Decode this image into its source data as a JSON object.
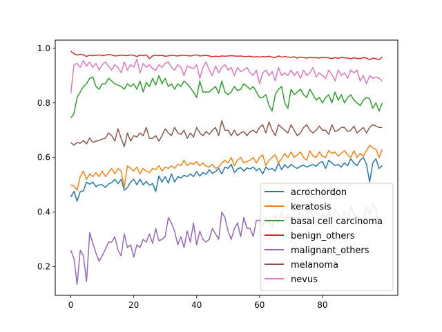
{
  "chart_data": {
    "type": "line",
    "title": "",
    "xlabel": "",
    "ylabel": "",
    "xlim": [
      -4.95,
      103.95
    ],
    "ylim": [
      0.095,
      1.03
    ],
    "x_ticks": [
      0,
      20,
      40,
      60,
      80
    ],
    "y_ticks": [
      0.2,
      0.4,
      0.6,
      0.8,
      1.0
    ],
    "x_tick_labels": [
      "0",
      "20",
      "40",
      "60",
      "80"
    ],
    "y_tick_labels": [
      "0.2",
      "0.4",
      "0.6",
      "0.8",
      "1.0"
    ],
    "grid": false,
    "legend_position": "lower-right",
    "x": [
      0,
      1,
      2,
      3,
      4,
      5,
      6,
      7,
      8,
      9,
      10,
      11,
      12,
      13,
      14,
      15,
      16,
      17,
      18,
      19,
      20,
      21,
      22,
      23,
      24,
      25,
      26,
      27,
      28,
      29,
      30,
      31,
      32,
      33,
      34,
      35,
      36,
      37,
      38,
      39,
      40,
      41,
      42,
      43,
      44,
      45,
      46,
      47,
      48,
      49,
      50,
      51,
      52,
      53,
      54,
      55,
      56,
      57,
      58,
      59,
      60,
      61,
      62,
      63,
      64,
      65,
      66,
      67,
      68,
      69,
      70,
      71,
      72,
      73,
      74,
      75,
      76,
      77,
      78,
      79,
      80,
      81,
      82,
      83,
      84,
      85,
      86,
      87,
      88,
      89,
      90,
      91,
      92,
      93,
      94,
      95,
      96,
      97,
      98,
      99
    ],
    "series": [
      {
        "name": "acrochordon",
        "color": "#1f77b4",
        "values": [
          0.455,
          0.476,
          0.44,
          0.475,
          0.478,
          0.51,
          0.502,
          0.51,
          0.493,
          0.5,
          0.5,
          0.49,
          0.503,
          0.508,
          0.52,
          0.504,
          0.52,
          0.48,
          0.49,
          0.51,
          0.52,
          0.5,
          0.52,
          0.5,
          0.512,
          0.498,
          0.505,
          0.475,
          0.532,
          0.51,
          0.53,
          0.506,
          0.54,
          0.51,
          0.53,
          0.525,
          0.535,
          0.53,
          0.54,
          0.53,
          0.548,
          0.532,
          0.545,
          0.538,
          0.555,
          0.542,
          0.548,
          0.56,
          0.54,
          0.565,
          0.56,
          0.575,
          0.545,
          0.558,
          0.563,
          0.55,
          0.562,
          0.558,
          0.565,
          0.552,
          0.56,
          0.54,
          0.565,
          0.555,
          0.56,
          0.55,
          0.58,
          0.555,
          0.574,
          0.562,
          0.575,
          0.566,
          0.56,
          0.568,
          0.572,
          0.565,
          0.57,
          0.575,
          0.568,
          0.58,
          0.585,
          0.56,
          0.59,
          0.58,
          0.57,
          0.575,
          0.565,
          0.58,
          0.57,
          0.595,
          0.58,
          0.57,
          0.59,
          0.6,
          0.575,
          0.51,
          0.58,
          0.595,
          0.56,
          0.57
        ]
      },
      {
        "name": "keratosis",
        "color": "#ff7f0e",
        "values": [
          0.5,
          0.495,
          0.48,
          0.53,
          0.55,
          0.52,
          0.54,
          0.53,
          0.545,
          0.53,
          0.55,
          0.53,
          0.545,
          0.56,
          0.54,
          0.56,
          0.55,
          0.49,
          0.57,
          0.56,
          0.55,
          0.565,
          0.54,
          0.56,
          0.55,
          0.545,
          0.56,
          0.555,
          0.57,
          0.55,
          0.565,
          0.56,
          0.57,
          0.56,
          0.575,
          0.57,
          0.59,
          0.57,
          0.58,
          0.575,
          0.585,
          0.57,
          0.58,
          0.568,
          0.565,
          0.575,
          0.56,
          0.565,
          0.58,
          0.59,
          0.58,
          0.6,
          0.57,
          0.59,
          0.6,
          0.58,
          0.585,
          0.59,
          0.6,
          0.58,
          0.6,
          0.61,
          0.57,
          0.59,
          0.6,
          0.61,
          0.58,
          0.595,
          0.615,
          0.6,
          0.62,
          0.6,
          0.61,
          0.62,
          0.6,
          0.59,
          0.625,
          0.605,
          0.6,
          0.62,
          0.605,
          0.6,
          0.625,
          0.615,
          0.62,
          0.605,
          0.615,
          0.625,
          0.61,
          0.6,
          0.625,
          0.6,
          0.615,
          0.605,
          0.625,
          0.645,
          0.635,
          0.63,
          0.6,
          0.63
        ]
      },
      {
        "name": "basal cell carcinoma",
        "color": "#2ca02c",
        "values": [
          0.745,
          0.76,
          0.82,
          0.84,
          0.86,
          0.87,
          0.89,
          0.895,
          0.86,
          0.85,
          0.87,
          0.87,
          0.89,
          0.88,
          0.87,
          0.865,
          0.86,
          0.85,
          0.87,
          0.86,
          0.87,
          0.85,
          0.88,
          0.84,
          0.875,
          0.86,
          0.89,
          0.865,
          0.9,
          0.87,
          0.89,
          0.86,
          0.87,
          0.85,
          0.87,
          0.86,
          0.88,
          0.87,
          0.855,
          0.84,
          0.82,
          0.88,
          0.84,
          0.84,
          0.84,
          0.85,
          0.86,
          0.835,
          0.88,
          0.84,
          0.83,
          0.84,
          0.86,
          0.845,
          0.85,
          0.87,
          0.86,
          0.85,
          0.86,
          0.84,
          0.82,
          0.82,
          0.83,
          0.79,
          0.77,
          0.83,
          0.85,
          0.86,
          0.8,
          0.78,
          0.85,
          0.83,
          0.84,
          0.85,
          0.83,
          0.82,
          0.85,
          0.83,
          0.81,
          0.82,
          0.8,
          0.82,
          0.83,
          0.8,
          0.84,
          0.81,
          0.83,
          0.8,
          0.82,
          0.83,
          0.81,
          0.8,
          0.79,
          0.81,
          0.82,
          0.815,
          0.78,
          0.8,
          0.77,
          0.8
        ]
      },
      {
        "name": "benign_others",
        "color": "#d62728",
        "values": [
          0.99,
          0.98,
          0.975,
          0.978,
          0.976,
          0.97,
          0.975,
          0.973,
          0.974,
          0.976,
          0.973,
          0.975,
          0.977,
          0.976,
          0.972,
          0.973,
          0.975,
          0.974,
          0.973,
          0.976,
          0.974,
          0.97,
          0.975,
          0.973,
          0.976,
          0.962,
          0.972,
          0.975,
          0.973,
          0.974,
          0.971,
          0.972,
          0.975,
          0.973,
          0.972,
          0.974,
          0.975,
          0.973,
          0.972,
          0.974,
          0.976,
          0.972,
          0.973,
          0.974,
          0.972,
          0.969,
          0.971,
          0.97,
          0.972,
          0.971,
          0.972,
          0.973,
          0.972,
          0.971,
          0.972,
          0.97,
          0.97,
          0.971,
          0.968,
          0.97,
          0.968,
          0.97,
          0.969,
          0.971,
          0.968,
          0.966,
          0.972,
          0.968,
          0.97,
          0.968,
          0.967,
          0.969,
          0.964,
          0.968,
          0.966,
          0.964,
          0.967,
          0.965,
          0.966,
          0.964,
          0.967,
          0.966,
          0.965,
          0.962,
          0.966,
          0.963,
          0.967,
          0.965,
          0.964,
          0.962,
          0.965,
          0.963,
          0.962,
          0.966,
          0.964,
          0.958,
          0.964,
          0.962,
          0.958,
          0.968
        ]
      },
      {
        "name": "malignant_others",
        "color": "#9467bd",
        "values": [
          0.26,
          0.23,
          0.135,
          0.26,
          0.24,
          0.145,
          0.325,
          0.285,
          0.25,
          0.22,
          0.24,
          0.265,
          0.29,
          0.29,
          0.31,
          0.26,
          0.24,
          0.32,
          0.27,
          0.28,
          0.235,
          0.28,
          0.27,
          0.3,
          0.29,
          0.32,
          0.285,
          0.34,
          0.295,
          0.3,
          0.31,
          0.38,
          0.36,
          0.33,
          0.28,
          0.31,
          0.27,
          0.33,
          0.29,
          0.36,
          0.28,
          0.33,
          0.3,
          0.29,
          0.3,
          0.34,
          0.32,
          0.3,
          0.4,
          0.38,
          0.33,
          0.3,
          0.34,
          0.36,
          0.31,
          0.38,
          0.34,
          0.34,
          0.31,
          0.37,
          0.37,
          0.35,
          0.38,
          0.36,
          0.34,
          0.39,
          0.36,
          0.4,
          0.37,
          0.39,
          0.37,
          0.36,
          0.38,
          0.4,
          0.39,
          0.37,
          0.41,
          0.38,
          0.4,
          0.37,
          0.39,
          0.38,
          0.4,
          0.37,
          0.41,
          0.39,
          0.38,
          0.4,
          0.37,
          0.42,
          0.39,
          0.38,
          0.36,
          0.38,
          0.42,
          0.39,
          0.43,
          0.41,
          0.34,
          0.36
        ]
      },
      {
        "name": "melanoma",
        "color": "#8c564b",
        "values": [
          0.655,
          0.645,
          0.655,
          0.652,
          0.662,
          0.65,
          0.672,
          0.655,
          0.66,
          0.662,
          0.668,
          0.67,
          0.69,
          0.68,
          0.66,
          0.705,
          0.67,
          0.64,
          0.69,
          0.66,
          0.68,
          0.675,
          0.69,
          0.68,
          0.71,
          0.67,
          0.67,
          0.68,
          0.66,
          0.68,
          0.705,
          0.69,
          0.68,
          0.71,
          0.69,
          0.685,
          0.7,
          0.67,
          0.69,
          0.675,
          0.71,
          0.69,
          0.68,
          0.695,
          0.685,
          0.7,
          0.71,
          0.68,
          0.735,
          0.7,
          0.7,
          0.68,
          0.7,
          0.68,
          0.69,
          0.695,
          0.68,
          0.695,
          0.7,
          0.69,
          0.71,
          0.72,
          0.69,
          0.73,
          0.7,
          0.68,
          0.72,
          0.71,
          0.7,
          0.69,
          0.72,
          0.7,
          0.68,
          0.69,
          0.71,
          0.72,
          0.7,
          0.69,
          0.7,
          0.715,
          0.7,
          0.7,
          0.685,
          0.72,
          0.695,
          0.7,
          0.71,
          0.71,
          0.695,
          0.7,
          0.715,
          0.69,
          0.7,
          0.71,
          0.69,
          0.71,
          0.72,
          0.715,
          0.71,
          0.71
        ]
      },
      {
        "name": "nevus",
        "color": "#e377c2",
        "values": [
          0.835,
          0.94,
          0.945,
          0.93,
          0.955,
          0.935,
          0.95,
          0.93,
          0.945,
          0.92,
          0.94,
          0.95,
          0.935,
          0.92,
          0.94,
          0.93,
          0.91,
          0.95,
          0.92,
          0.94,
          0.93,
          0.96,
          0.91,
          0.945,
          0.93,
          0.94,
          0.925,
          0.92,
          0.94,
          0.93,
          0.945,
          0.95,
          0.93,
          0.92,
          0.94,
          0.93,
          0.9,
          0.935,
          0.93,
          0.925,
          0.94,
          0.89,
          0.93,
          0.95,
          0.92,
          0.9,
          0.935,
          0.91,
          0.93,
          0.94,
          0.92,
          0.93,
          0.9,
          0.93,
          0.915,
          0.92,
          0.93,
          0.91,
          0.9,
          0.92,
          0.87,
          0.91,
          0.92,
          0.9,
          0.915,
          0.88,
          0.93,
          0.9,
          0.91,
          0.9,
          0.92,
          0.9,
          0.915,
          0.89,
          0.92,
          0.9,
          0.91,
          0.93,
          0.895,
          0.91,
          0.9,
          0.89,
          0.92,
          0.905,
          0.88,
          0.92,
          0.9,
          0.91,
          0.89,
          0.92,
          0.91,
          0.92,
          0.88,
          0.9,
          0.87,
          0.9,
          0.89,
          0.895,
          0.89,
          0.88
        ]
      }
    ]
  }
}
